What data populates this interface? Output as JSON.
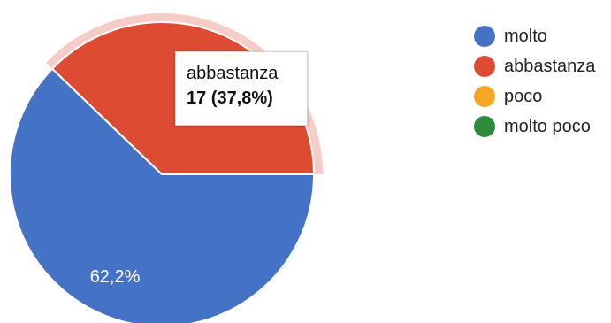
{
  "chart_data": {
    "type": "pie",
    "categories": [
      "molto",
      "abbastanza",
      "poco",
      "molto poco"
    ],
    "values": [
      62.2,
      37.8,
      0,
      0
    ],
    "slice_labels": [
      "62,2%",
      "",
      "",
      ""
    ],
    "colors": [
      "#4472c4",
      "#de4b33",
      "#f5a623",
      "#2e8b3c"
    ],
    "highlighted_slice": "abbastanza",
    "legend_position": "right",
    "tooltip": {
      "label": "abbastanza",
      "value": "17 (37,8%)"
    },
    "legend": [
      {
        "label": "molto",
        "color": "#4472c4"
      },
      {
        "label": "abbastanza",
        "color": "#de4b33"
      },
      {
        "label": "poco",
        "color": "#f5a623"
      },
      {
        "label": "molto poco",
        "color": "#2e8b3c"
      }
    ]
  }
}
